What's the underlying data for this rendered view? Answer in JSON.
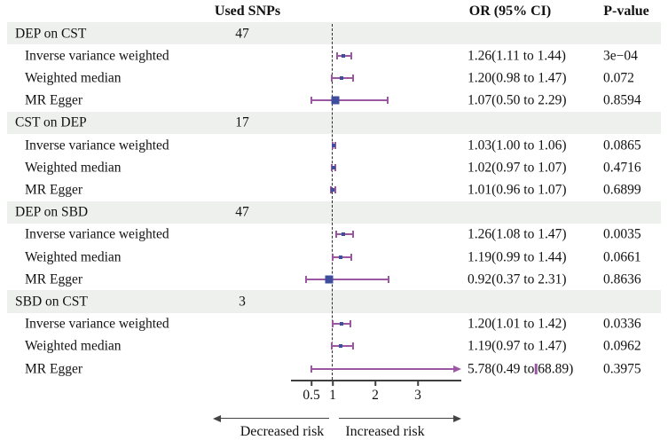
{
  "header": {
    "used_snps": "Used SNPs",
    "or_ci": "OR (95% CI)",
    "p_value": "P-value"
  },
  "footer": {
    "decreased_label": "Decreased risk",
    "increased_label": "Increased risk"
  },
  "colors": {
    "band": "#eef0ed",
    "ci_line": "#9c57a3",
    "marker": "#3c4e9c",
    "axis": "#3f3f3f",
    "text": "#111111"
  },
  "chart_data": {
    "type": "scatter",
    "subtype": "forest-plot",
    "title": "",
    "x_axis": {
      "scale": "linear",
      "ticks": [
        "0.5",
        "1",
        "2",
        "3"
      ],
      "tick_values": [
        0.5,
        1,
        2,
        3
      ],
      "reference_line": 1,
      "range": [
        0.02,
        4.05
      ]
    },
    "legend": "none",
    "grid": false,
    "rows": [
      {
        "kind": "group",
        "label": "DEP on CST",
        "snps": "47"
      },
      {
        "kind": "data",
        "label": "Inverse variance weighted",
        "or": 1.26,
        "ci_low": 1.11,
        "ci_high": 1.44,
        "or_text": "1.26(1.11 to 1.44)",
        "p_text": "3e−04",
        "marker": "small",
        "arrow": false
      },
      {
        "kind": "data",
        "label": "Weighted median",
        "or": 1.2,
        "ci_low": 0.98,
        "ci_high": 1.47,
        "or_text": "1.20(0.98 to 1.47)",
        "p_text": "0.072",
        "marker": "small",
        "arrow": false
      },
      {
        "kind": "data",
        "label": "MR Egger",
        "or": 1.07,
        "ci_low": 0.5,
        "ci_high": 2.29,
        "or_text": "1.07(0.50 to 2.29)",
        "p_text": "0.8594",
        "marker": "large",
        "arrow": false
      },
      {
        "kind": "group",
        "label": "CST on DEP",
        "snps": "17"
      },
      {
        "kind": "data",
        "label": "Inverse variance weighted",
        "or": 1.03,
        "ci_low": 1.0,
        "ci_high": 1.06,
        "or_text": "1.03(1.00 to 1.06)",
        "p_text": "0.0865",
        "marker": "small",
        "arrow": false
      },
      {
        "kind": "data",
        "label": "Weighted median",
        "or": 1.02,
        "ci_low": 0.97,
        "ci_high": 1.07,
        "or_text": "1.02(0.97 to 1.07)",
        "p_text": "0.4716",
        "marker": "small",
        "arrow": false
      },
      {
        "kind": "data",
        "label": "MR Egger",
        "or": 1.01,
        "ci_low": 0.96,
        "ci_high": 1.07,
        "or_text": "1.01(0.96 to 1.07)",
        "p_text": "0.6899",
        "marker": "small",
        "arrow": false
      },
      {
        "kind": "group",
        "label": "DEP on SBD",
        "snps": "47"
      },
      {
        "kind": "data",
        "label": "Inverse variance weighted",
        "or": 1.26,
        "ci_low": 1.08,
        "ci_high": 1.47,
        "or_text": "1.26(1.08 to 1.47)",
        "p_text": "0.0035",
        "marker": "small",
        "arrow": false
      },
      {
        "kind": "data",
        "label": "Weighted median",
        "or": 1.19,
        "ci_low": 0.99,
        "ci_high": 1.44,
        "or_text": "1.19(0.99 to 1.44)",
        "p_text": "0.0661",
        "marker": "small",
        "arrow": false
      },
      {
        "kind": "data",
        "label": "MR Egger",
        "or": 0.92,
        "ci_low": 0.37,
        "ci_high": 2.31,
        "or_text": "0.92(0.37 to 2.31)",
        "p_text": "0.8636",
        "marker": "large",
        "arrow": false
      },
      {
        "kind": "group",
        "label": "SBD on CST",
        "snps": "3"
      },
      {
        "kind": "data",
        "label": "Inverse variance weighted",
        "or": 1.2,
        "ci_low": 1.01,
        "ci_high": 1.42,
        "or_text": "1.20(1.01 to 1.42)",
        "p_text": "0.0336",
        "marker": "small",
        "arrow": false
      },
      {
        "kind": "data",
        "label": "Weighted median",
        "or": 1.19,
        "ci_low": 0.97,
        "ci_high": 1.47,
        "or_text": "1.19(0.97 to 1.47)",
        "p_text": "0.0962",
        "marker": "small",
        "arrow": false
      },
      {
        "kind": "data",
        "label": "MR Egger",
        "or": 5.78,
        "ci_low": 0.49,
        "ci_high": 68.89,
        "or_text": "5.78(0.49 to 68.89)",
        "p_text": "0.3975",
        "marker": "tick",
        "arrow": true
      }
    ]
  }
}
